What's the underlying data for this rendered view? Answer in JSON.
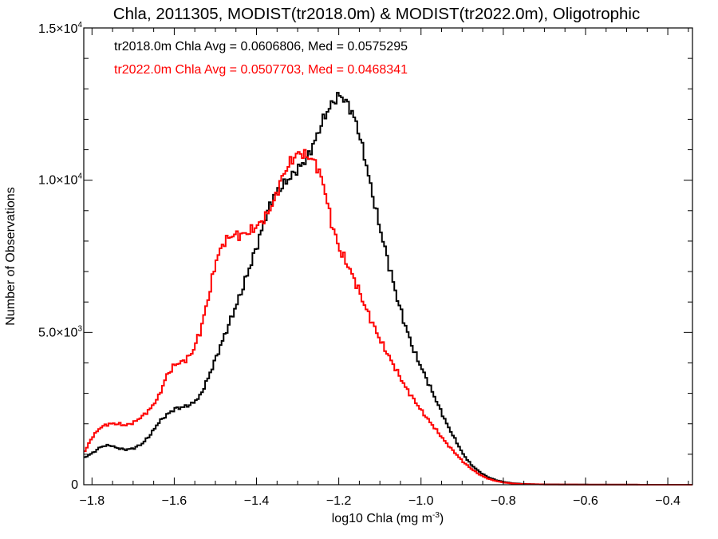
{
  "chart_data": {
    "type": "line",
    "title": "Chla, 2011305, MODIST(tr2018.0m) & MODIST(tr2022.0m), Oligotrophic",
    "xlabel": "log10 Chla (mg m",
    "xlabel_exponent": "-3",
    "xlabel_suffix": ")",
    "ylabel": "Number of Observations",
    "xlim": [
      -1.82,
      -0.34
    ],
    "ylim": [
      0,
      15000
    ],
    "x_ticks": [
      {
        "value": -1.8,
        "label": "−1.8"
      },
      {
        "value": -1.6,
        "label": "−1.6"
      },
      {
        "value": -1.4,
        "label": "−1.4"
      },
      {
        "value": -1.2,
        "label": "−1.2"
      },
      {
        "value": -1.0,
        "label": "−1.0"
      },
      {
        "value": -0.8,
        "label": "−0.8"
      },
      {
        "value": -0.6,
        "label": "−0.6"
      },
      {
        "value": -0.4,
        "label": "−0.4"
      }
    ],
    "y_ticks": [
      {
        "value": 0,
        "label": "0",
        "exponent": ""
      },
      {
        "value": 5000,
        "label": "5.0×10",
        "exponent": "3"
      },
      {
        "value": 10000,
        "label": "1.0×10",
        "exponent": "4"
      },
      {
        "value": 15000,
        "label": "1.5×10",
        "exponent": "4"
      }
    ],
    "annotations": [
      {
        "text": "tr2018.0m Chla Avg = 0.0606806, Med = 0.0575295",
        "color": "#000000"
      },
      {
        "text": "tr2022.0m Chla Avg = 0.0507703, Med = 0.0468341",
        "color": "#ff0000"
      }
    ],
    "grid": false,
    "legend": "none",
    "series": [
      {
        "color": "#000000",
        "points": [
          [
            -1.82,
            900
          ],
          [
            -1.8,
            1050
          ],
          [
            -1.78,
            1250
          ],
          [
            -1.76,
            1300
          ],
          [
            -1.74,
            1200
          ],
          [
            -1.72,
            1150
          ],
          [
            -1.7,
            1200
          ],
          [
            -1.68,
            1350
          ],
          [
            -1.66,
            1650
          ],
          [
            -1.64,
            2050
          ],
          [
            -1.62,
            2300
          ],
          [
            -1.6,
            2500
          ],
          [
            -1.58,
            2550
          ],
          [
            -1.56,
            2650
          ],
          [
            -1.54,
            2900
          ],
          [
            -1.52,
            3500
          ],
          [
            -1.5,
            4200
          ],
          [
            -1.48,
            4900
          ],
          [
            -1.46,
            5600
          ],
          [
            -1.44,
            6300
          ],
          [
            -1.42,
            7100
          ],
          [
            -1.4,
            7900
          ],
          [
            -1.38,
            8800
          ],
          [
            -1.36,
            9500
          ],
          [
            -1.34,
            9800
          ],
          [
            -1.32,
            10100
          ],
          [
            -1.3,
            10400
          ],
          [
            -1.28,
            10700
          ],
          [
            -1.26,
            11300
          ],
          [
            -1.24,
            12000
          ],
          [
            -1.22,
            12500
          ],
          [
            -1.2,
            12800
          ],
          [
            -1.18,
            12500
          ],
          [
            -1.16,
            11900
          ],
          [
            -1.14,
            10800
          ],
          [
            -1.12,
            9500
          ],
          [
            -1.1,
            8300
          ],
          [
            -1.08,
            7200
          ],
          [
            -1.06,
            6100
          ],
          [
            -1.04,
            5200
          ],
          [
            -1.02,
            4400
          ],
          [
            -1.0,
            3800
          ],
          [
            -0.98,
            3200
          ],
          [
            -0.96,
            2600
          ],
          [
            -0.94,
            2000
          ],
          [
            -0.92,
            1500
          ],
          [
            -0.9,
            1000
          ],
          [
            -0.88,
            650
          ],
          [
            -0.86,
            420
          ],
          [
            -0.84,
            250
          ],
          [
            -0.82,
            150
          ],
          [
            -0.8,
            90
          ],
          [
            -0.78,
            50
          ],
          [
            -0.75,
            25
          ],
          [
            -0.7,
            10
          ],
          [
            -0.6,
            5
          ],
          [
            -0.5,
            2
          ],
          [
            -0.34,
            0
          ]
        ]
      },
      {
        "color": "#ff0000",
        "points": [
          [
            -1.82,
            1100
          ],
          [
            -1.8,
            1600
          ],
          [
            -1.78,
            1900
          ],
          [
            -1.76,
            2000
          ],
          [
            -1.74,
            2000
          ],
          [
            -1.72,
            1950
          ],
          [
            -1.7,
            2050
          ],
          [
            -1.68,
            2250
          ],
          [
            -1.66,
            2500
          ],
          [
            -1.64,
            2900
          ],
          [
            -1.62,
            3600
          ],
          [
            -1.6,
            3950
          ],
          [
            -1.58,
            4050
          ],
          [
            -1.56,
            4300
          ],
          [
            -1.54,
            5000
          ],
          [
            -1.52,
            6100
          ],
          [
            -1.5,
            7400
          ],
          [
            -1.48,
            8000
          ],
          [
            -1.46,
            8200
          ],
          [
            -1.44,
            8200
          ],
          [
            -1.42,
            8300
          ],
          [
            -1.4,
            8500
          ],
          [
            -1.38,
            8800
          ],
          [
            -1.36,
            9300
          ],
          [
            -1.34,
            10100
          ],
          [
            -1.32,
            10600
          ],
          [
            -1.3,
            10900
          ],
          [
            -1.28,
            10800
          ],
          [
            -1.26,
            10600
          ],
          [
            -1.24,
            9900
          ],
          [
            -1.22,
            8600
          ],
          [
            -1.2,
            7700
          ],
          [
            -1.18,
            7200
          ],
          [
            -1.16,
            6600
          ],
          [
            -1.14,
            5900
          ],
          [
            -1.12,
            5300
          ],
          [
            -1.1,
            4700
          ],
          [
            -1.08,
            4200
          ],
          [
            -1.06,
            3700
          ],
          [
            -1.04,
            3200
          ],
          [
            -1.02,
            2800
          ],
          [
            -1.0,
            2400
          ],
          [
            -0.98,
            2050
          ],
          [
            -0.96,
            1700
          ],
          [
            -0.94,
            1350
          ],
          [
            -0.92,
            1050
          ],
          [
            -0.9,
            750
          ],
          [
            -0.88,
            520
          ],
          [
            -0.86,
            330
          ],
          [
            -0.84,
            200
          ],
          [
            -0.82,
            120
          ],
          [
            -0.8,
            70
          ],
          [
            -0.78,
            40
          ],
          [
            -0.75,
            20
          ],
          [
            -0.7,
            8
          ],
          [
            -0.6,
            4
          ],
          [
            -0.5,
            2
          ],
          [
            -0.34,
            0
          ]
        ]
      }
    ]
  }
}
